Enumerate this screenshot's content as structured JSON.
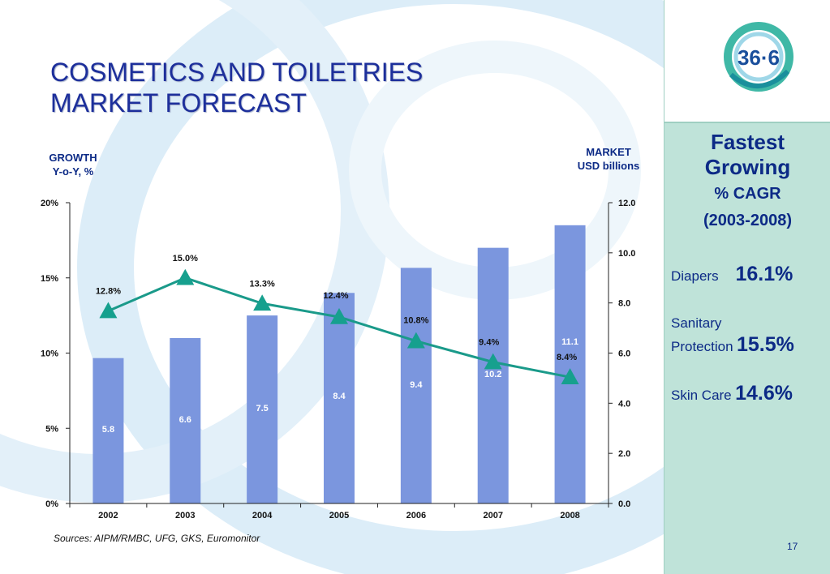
{
  "title_line1": "COSMETICS AND TOILETRIES",
  "title_line2": "MARKET FORECAST",
  "left_axis_title_line1": "GROWTH",
  "left_axis_title_line2": "Y-o-Y, %",
  "right_axis_title_line1": "MARKET",
  "right_axis_title_line2": "USD billions",
  "sources": "Sources: AIPM/RMBC, UFG, GKS, Euromonitor",
  "page_number": "17",
  "logo_text": "36·6",
  "sidebar": {
    "title_line1": "Fastest",
    "title_line2": "Growing",
    "subtitle_line1": "% CAGR",
    "subtitle_line2": "(2003-2008)",
    "items": [
      {
        "label": "Diapers",
        "value": "16.1%"
      },
      {
        "label_line1": "Sanitary",
        "label_line2": "Protection",
        "value": "15.5%"
      },
      {
        "label": "Skin Care",
        "value": "14.6%"
      }
    ]
  },
  "colors": {
    "bar": "#7b96de",
    "line": "#1a9a8a",
    "marker": "#16a08e",
    "title": "#1d2f9b",
    "sidebar_bg": "#bfe3d9"
  },
  "chart_data": {
    "type": "bar+line",
    "categories": [
      "2002",
      "2003",
      "2004",
      "2005",
      "2006",
      "2007",
      "2008"
    ],
    "series": [
      {
        "type": "bar",
        "axis": "right",
        "values": [
          5.8,
          6.6,
          7.5,
          8.4,
          9.4,
          10.2,
          11.1
        ],
        "labels": [
          "5.8",
          "6.6",
          "7.5",
          "8.4",
          "9.4",
          "10.2",
          "11.1"
        ]
      },
      {
        "type": "line",
        "axis": "left",
        "values": [
          12.8,
          15.0,
          13.3,
          12.4,
          10.8,
          9.4,
          8.4
        ],
        "labels": [
          "12.8%",
          "15.0%",
          "13.3%",
          "12.4%",
          "10.8%",
          "9.4%",
          "8.4%"
        ]
      }
    ],
    "left_axis": {
      "range": [
        0,
        20
      ],
      "ticks": [
        0,
        5,
        10,
        15,
        20
      ],
      "tick_labels": [
        "0%",
        "5%",
        "10%",
        "15%",
        "20%"
      ]
    },
    "right_axis": {
      "range": [
        0,
        12
      ],
      "ticks": [
        0,
        2,
        4,
        6,
        8,
        10,
        12
      ],
      "tick_labels": [
        "0.0",
        "2.0",
        "4.0",
        "6.0",
        "8.0",
        "10.0",
        "12.0"
      ]
    },
    "grid": false
  }
}
